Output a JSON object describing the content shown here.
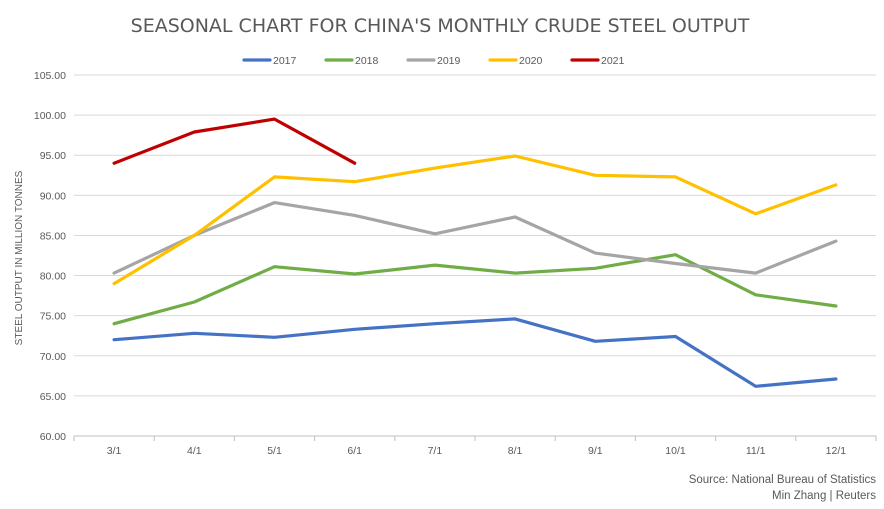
{
  "chart_data": {
    "type": "line",
    "title": "SEASONAL CHART FOR CHINA'S MONTHLY CRUDE STEEL OUTPUT",
    "xlabel": "",
    "ylabel": "STEEL OUTPUT IN MILLION TONNES",
    "categories": [
      "3/1",
      "4/1",
      "5/1",
      "6/1",
      "7/1",
      "8/1",
      "9/1",
      "10/1",
      "11/1",
      "12/1"
    ],
    "ylim": [
      60,
      105
    ],
    "yticks": [
      "60.00",
      "65.00",
      "70.00",
      "75.00",
      "80.00",
      "85.00",
      "90.00",
      "95.00",
      "100.00",
      "105.00"
    ],
    "grid": true,
    "legend_position": "top-center",
    "series": [
      {
        "name": "2017",
        "color": "#4472C4",
        "values": [
          72.0,
          72.8,
          72.3,
          73.3,
          74.0,
          74.6,
          71.8,
          72.4,
          66.2,
          67.1
        ]
      },
      {
        "name": "2018",
        "color": "#70AD47",
        "values": [
          74.0,
          76.7,
          81.1,
          80.2,
          81.3,
          80.3,
          80.9,
          82.6,
          77.6,
          76.2
        ]
      },
      {
        "name": "2019",
        "color": "#A5A5A5",
        "values": [
          80.3,
          85.0,
          89.1,
          87.5,
          85.2,
          87.3,
          82.8,
          81.5,
          80.3,
          84.3
        ]
      },
      {
        "name": "2020",
        "color": "#FFC000",
        "values": [
          79.0,
          85.0,
          92.3,
          91.7,
          93.4,
          94.9,
          92.5,
          92.3,
          87.7,
          91.3
        ]
      },
      {
        "name": "2021",
        "color": "#C00000",
        "values": [
          94.0,
          97.9,
          99.5,
          94.0,
          null,
          null,
          null,
          null,
          null,
          null
        ]
      }
    ]
  },
  "source_line1": "Source: National Bureau of Statistics",
  "source_line2": "Min Zhang | Reuters"
}
